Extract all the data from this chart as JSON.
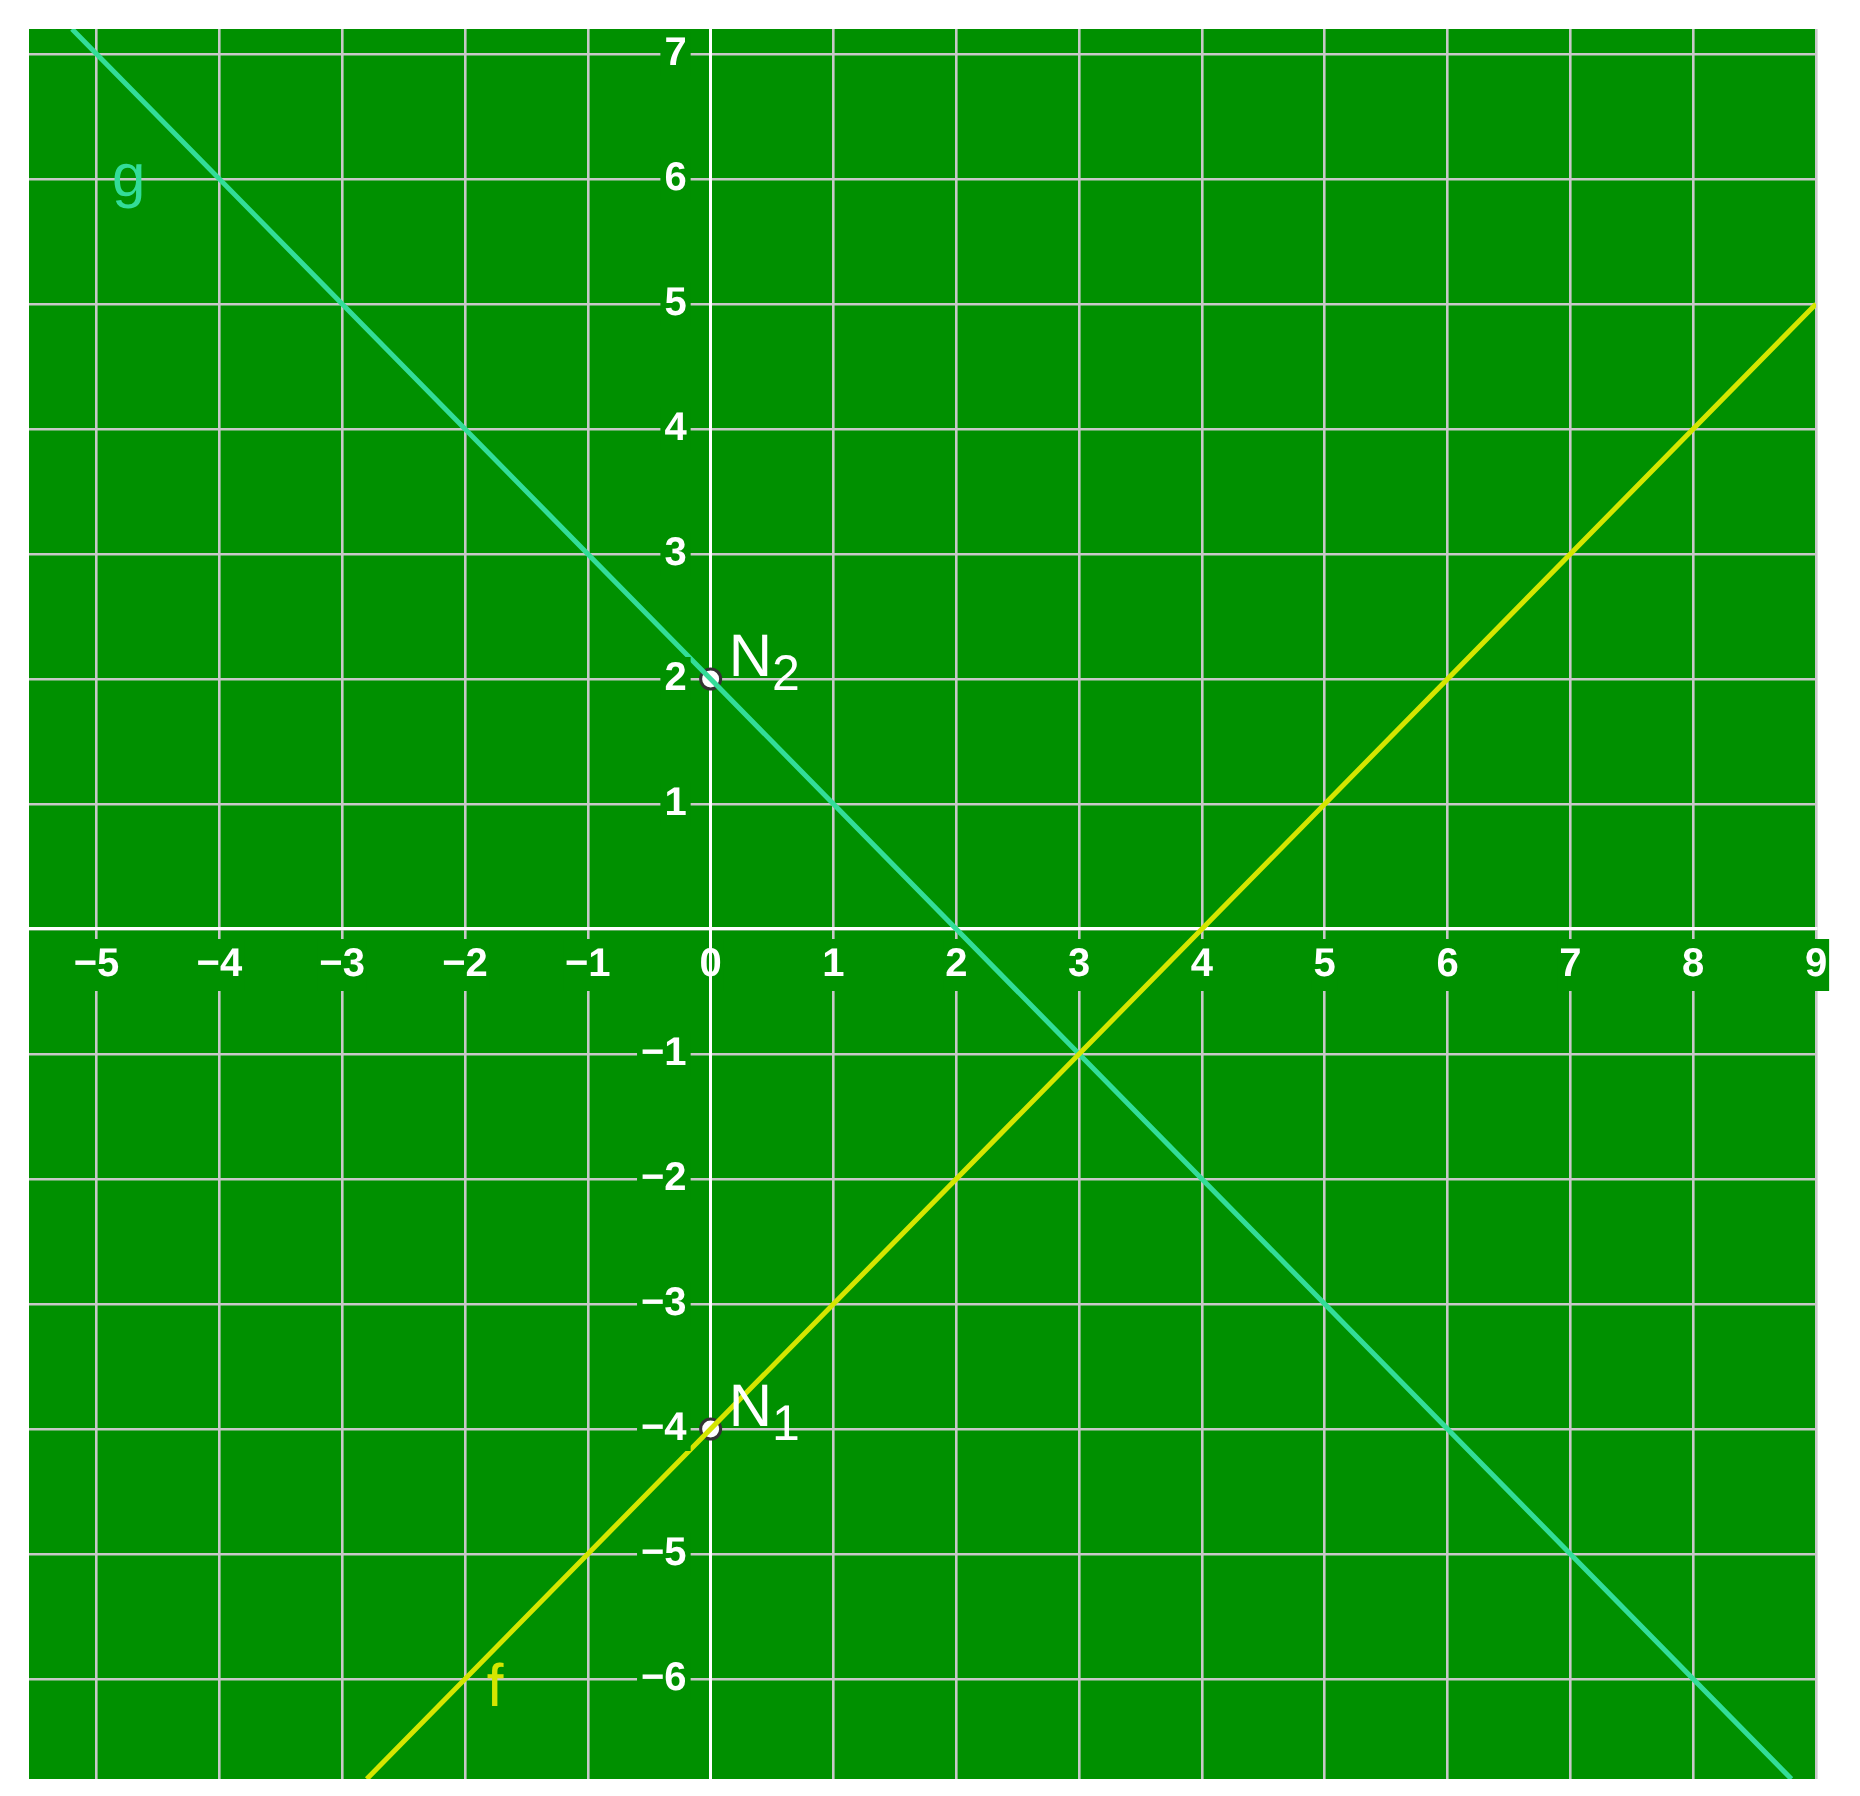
{
  "chart_data": {
    "type": "line",
    "xlim": [
      -5.55,
      9
    ],
    "ylim": [
      -6.8,
      7.2
    ],
    "xticks": [
      -5,
      -4,
      -3,
      -2,
      -1,
      0,
      1,
      2,
      3,
      4,
      5,
      6,
      7,
      8,
      9
    ],
    "yticks": [
      -6,
      -5,
      -4,
      -3,
      -2,
      -1,
      {
        "value": 0,
        "label": null
      },
      1,
      2,
      3,
      4,
      5,
      6,
      7
    ],
    "grid": true,
    "legend": false,
    "marker": "none",
    "line_style": "solid",
    "series": [
      {
        "name": "f",
        "color": "#d4e600",
        "x": [
          -2.8,
          0,
          3,
          9
        ],
        "values": [
          -6.8,
          -4,
          -1,
          5
        ]
      },
      {
        "name": "g",
        "color": "#33dd99",
        "x": [
          -5.2,
          0,
          3,
          8.8
        ],
        "values": [
          7.2,
          2,
          -1,
          -6.8
        ]
      },
      {
        "name": "N$_{1}$",
        "type": "scatter",
        "marker": "circle",
        "color": "#ffffff",
        "x": [
          0
        ],
        "values": [
          -4
        ]
      },
      {
        "name": "N$_{2}$",
        "type": "scatter",
        "marker": "circle",
        "color": "#ffffff",
        "x": [
          0
        ],
        "values": [
          2
        ]
      }
    ]
  }
}
